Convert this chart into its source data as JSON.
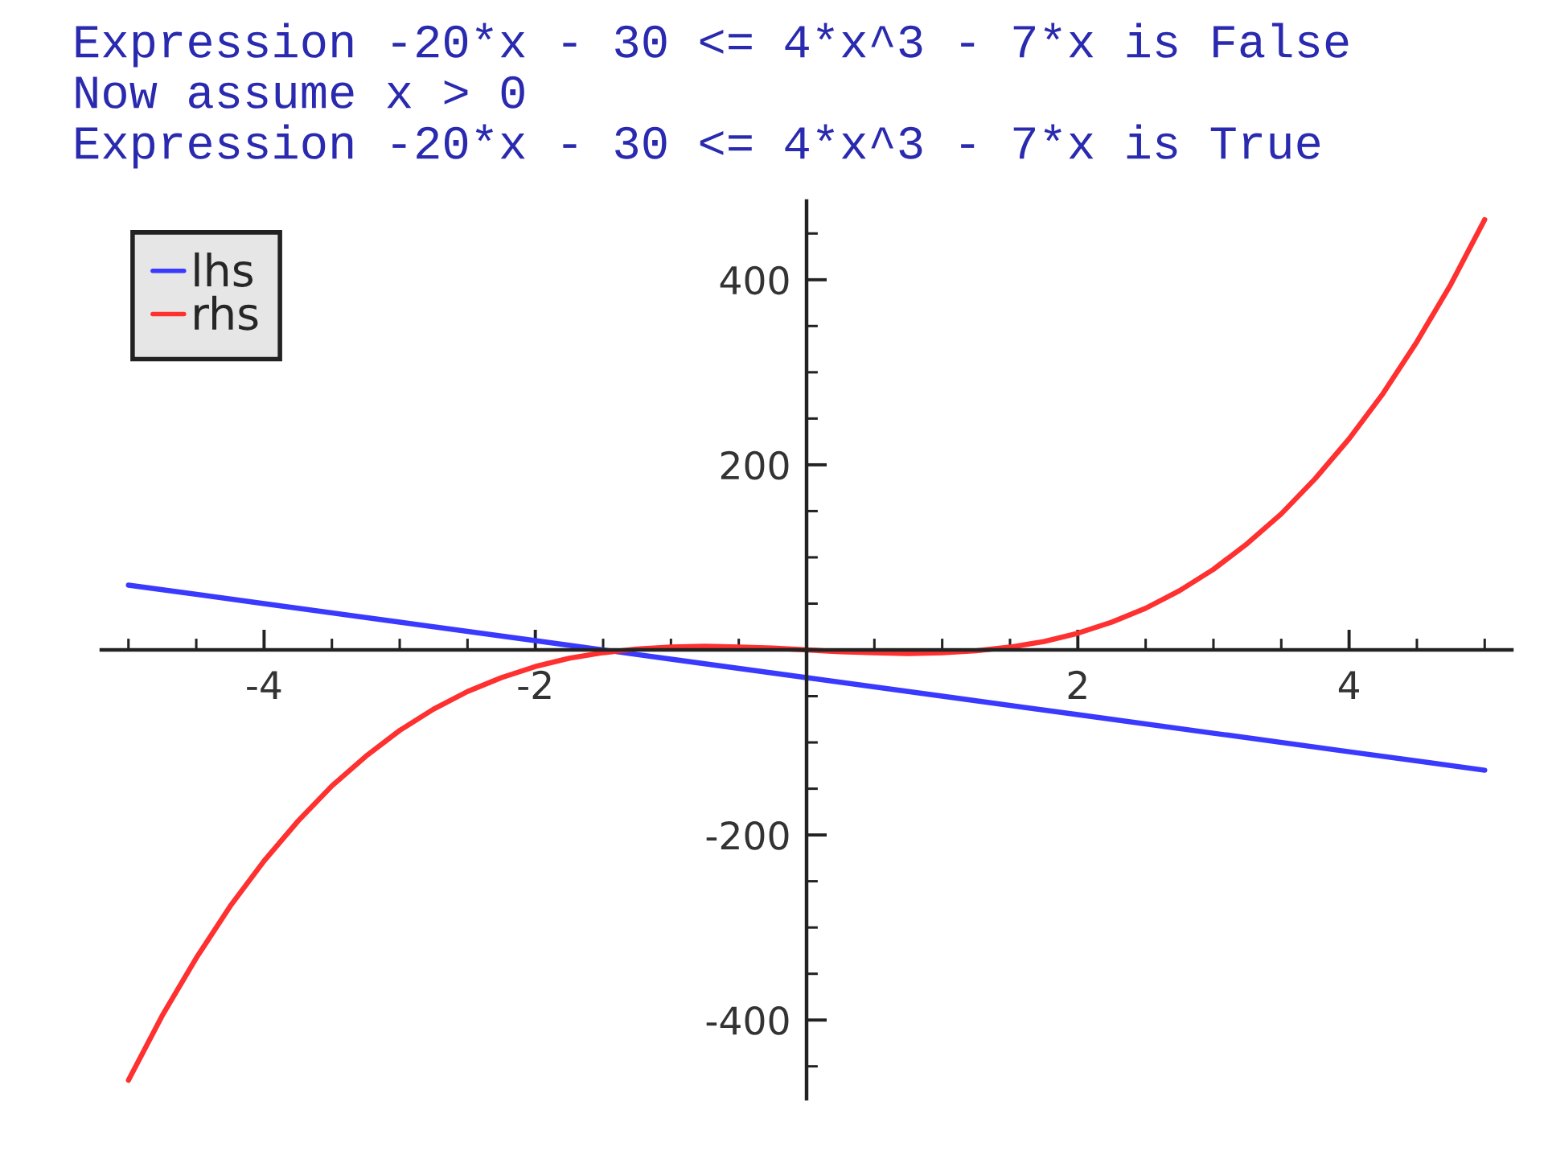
{
  "chart_data": {
    "type": "line",
    "annotations": [
      "Expression -20*x - 30 <= 4*x^3 - 7*x is False",
      "Now assume x > 0",
      "Expression -20*x - 30 <= 4*x^3 - 7*x is True"
    ],
    "series": [
      {
        "name": "lhs",
        "color": "#3a3aff",
        "x": [
          -5,
          -4,
          -3,
          -2,
          -1,
          0,
          1,
          2,
          3,
          4,
          5
        ],
        "values": [
          70,
          50,
          30,
          10,
          -10,
          -30,
          -50,
          -70,
          -90,
          -110,
          -130
        ]
      },
      {
        "name": "rhs",
        "color": "#ff3030",
        "x": [
          -5,
          -4.75,
          -4.5,
          -4.25,
          -4,
          -3.75,
          -3.5,
          -3.25,
          -3,
          -2.75,
          -2.5,
          -2.25,
          -2,
          -1.75,
          -1.5,
          -1.25,
          -1,
          -0.75,
          -0.5,
          -0.25,
          0,
          0.25,
          0.5,
          0.75,
          1,
          1.25,
          1.5,
          1.75,
          2,
          2.25,
          2.5,
          2.75,
          3,
          3.25,
          3.5,
          3.75,
          4,
          4.25,
          4.5,
          4.75,
          5
        ],
        "values": [
          -465,
          -395,
          -333,
          -277,
          -228,
          -185,
          -147,
          -115,
          -87,
          -64,
          -45,
          -30,
          -18,
          -9,
          -3,
          1,
          3,
          4,
          3,
          2,
          0,
          -2,
          -3,
          -4,
          -3,
          -1,
          3,
          9,
          18,
          30,
          45,
          64,
          87,
          115,
          147,
          185,
          228,
          277,
          333,
          395,
          465
        ]
      }
    ],
    "xlim": [
      -5.2,
      5.2
    ],
    "ylim": [
      -485,
      485
    ],
    "xticks": [
      {
        "value": -5,
        "label": null
      },
      {
        "value": -4.5,
        "label": null
      },
      -4,
      {
        "value": -3.5,
        "label": null
      },
      {
        "value": -3,
        "label": null
      },
      {
        "value": -2.5,
        "label": null
      },
      -2,
      {
        "value": -1.5,
        "label": null
      },
      {
        "value": -1,
        "label": null
      },
      {
        "value": -0.5,
        "label": null
      },
      {
        "value": 0.5,
        "label": null
      },
      {
        "value": 1,
        "label": null
      },
      {
        "value": 1.5,
        "label": null
      },
      2,
      {
        "value": 2.5,
        "label": null
      },
      {
        "value": 3,
        "label": null
      },
      {
        "value": 3.5,
        "label": null
      },
      4,
      {
        "value": 4.5,
        "label": null
      },
      {
        "value": 5,
        "label": null
      }
    ],
    "yticks": [
      {
        "value": -450,
        "label": null
      },
      -400,
      {
        "value": -350,
        "label": null
      },
      {
        "value": -300,
        "label": null
      },
      {
        "value": -250,
        "label": null
      },
      -200,
      {
        "value": -150,
        "label": null
      },
      {
        "value": -100,
        "label": null
      },
      {
        "value": -50,
        "label": null
      },
      {
        "value": 50,
        "label": null
      },
      {
        "value": 100,
        "label": null
      },
      {
        "value": 150,
        "label": null
      },
      200,
      {
        "value": 250,
        "label": null
      },
      {
        "value": 300,
        "label": null
      },
      {
        "value": 350,
        "label": null
      },
      400,
      {
        "value": 450,
        "label": null
      }
    ],
    "legend": "top left"
  }
}
